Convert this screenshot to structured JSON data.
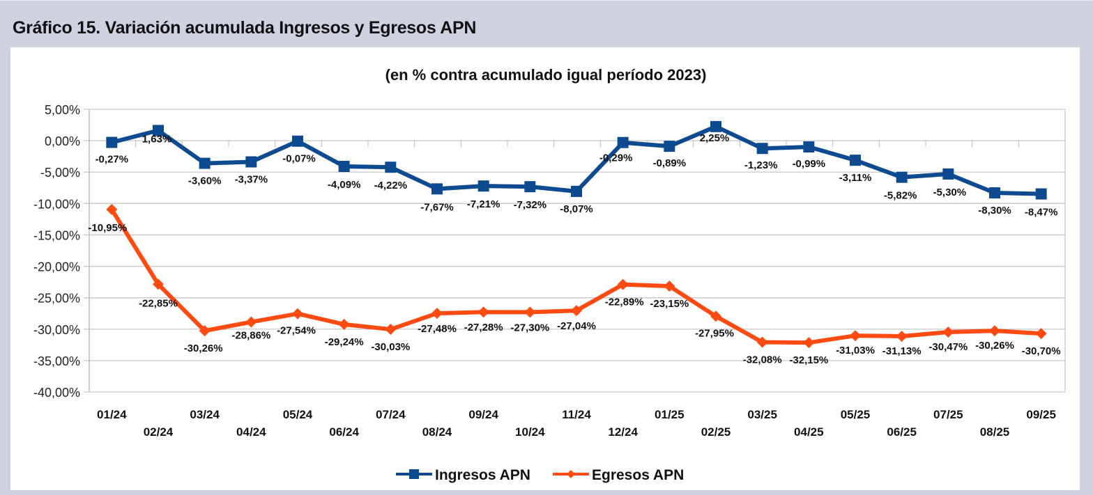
{
  "page": {
    "heading": "Gráfico 15. Variación acumulada Ingresos y Egresos APN"
  },
  "chart_data": {
    "type": "line",
    "title": "Gráfico 15. Variación acumulada Ingresos y Egresos APN",
    "subtitle": "(en % contra acumulado igual período 2023)",
    "xlabel": "",
    "ylabel": "",
    "ylim": [
      -40,
      5
    ],
    "yticks": [
      5,
      0,
      -5,
      -10,
      -15,
      -20,
      -25,
      -30,
      -35,
      -40
    ],
    "ytick_labels": [
      "5,00%",
      "0,00%",
      "-5,00%",
      "-10,00%",
      "-15,00%",
      "-20,00%",
      "-25,00%",
      "-30,00%",
      "-35,00%",
      "-40,00%"
    ],
    "grid": true,
    "legend_position": "bottom",
    "categories": [
      "01/24",
      "02/24",
      "03/24",
      "04/24",
      "05/24",
      "06/24",
      "07/24",
      "08/24",
      "09/24",
      "10/24",
      "11/24",
      "12/24",
      "01/25",
      "02/25",
      "03/25",
      "04/25",
      "05/25",
      "06/25",
      "07/25",
      "08/25",
      "09/25"
    ],
    "series": [
      {
        "name": "Ingresos APN",
        "color": "#0d4a8f",
        "marker": "square",
        "values": [
          -0.27,
          1.63,
          -3.6,
          -3.37,
          -0.07,
          -4.09,
          -4.22,
          -7.67,
          -7.21,
          -7.32,
          -8.07,
          -0.29,
          -0.89,
          2.25,
          -1.23,
          -0.99,
          -3.11,
          -5.82,
          -5.3,
          -8.3,
          -8.47
        ],
        "labels": [
          "-0,27%",
          "1,63%",
          "-3,60%",
          "-3,37%",
          "-0,07%",
          "-4,09%",
          "-4,22%",
          "-7,67%",
          "-7,21%",
          "-7,32%",
          "-8,07%",
          "-0,29%",
          "-0,89%",
          "2,25%",
          "-1,23%",
          "-0,99%",
          "-3,11%",
          "-5,82%",
          "-5,30%",
          "-8,30%",
          "-8,47%"
        ]
      },
      {
        "name": "Egresos APN",
        "color": "#ff4a12",
        "marker": "diamond",
        "values": [
          -10.95,
          -22.85,
          -30.26,
          -28.86,
          -27.54,
          -29.24,
          -30.03,
          -27.48,
          -27.28,
          -27.3,
          -27.04,
          -22.89,
          -23.15,
          -27.95,
          -32.08,
          -32.15,
          -31.03,
          -31.13,
          -30.47,
          -30.26,
          -30.7
        ],
        "labels": [
          "-10,95%",
          "-22,85%",
          "-30,26%",
          "-28,86%",
          "-27,54%",
          "-29,24%",
          "-30,03%",
          "-27,48%",
          "-27,28%",
          "-27,30%",
          "-27,04%",
          "-22,89%",
          "-23,15%",
          "-27,95%",
          "-32,08%",
          "-32,15%",
          "-31,03%",
          "-31,13%",
          "-30,47%",
          "-30,26%",
          "-30,70%"
        ]
      }
    ]
  }
}
